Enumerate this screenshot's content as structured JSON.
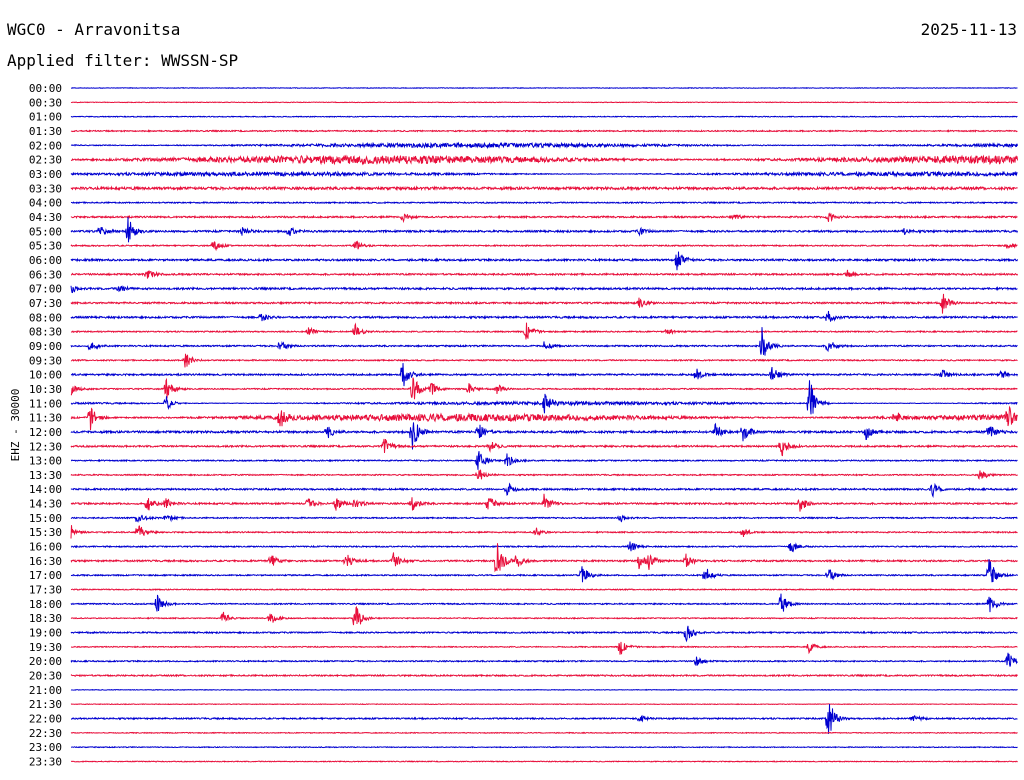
{
  "header": {
    "station": "WGC0 - Arravonitsa",
    "date": "2025-11-13",
    "filter": "Applied filter: WWSSN-SP"
  },
  "chart_data": {
    "type": "line",
    "title": "WGC0 - Arravonitsa",
    "ylabel": "EHZ - 30000",
    "xlabel": "",
    "line_colors": [
      "#0000d0",
      "#e8103c"
    ],
    "row_labels": [
      "00:00",
      "00:30",
      "01:00",
      "01:30",
      "02:00",
      "02:30",
      "03:00",
      "03:30",
      "04:00",
      "04:30",
      "05:00",
      "05:30",
      "06:00",
      "06:30",
      "07:00",
      "07:30",
      "08:00",
      "08:30",
      "09:00",
      "09:30",
      "10:00",
      "10:30",
      "11:00",
      "11:30",
      "12:00",
      "12:30",
      "13:00",
      "13:30",
      "14:00",
      "14:30",
      "15:00",
      "15:30",
      "16:00",
      "16:30",
      "17:00",
      "17:30",
      "18:00",
      "18:30",
      "19:00",
      "19:30",
      "20:00",
      "20:30",
      "21:00",
      "21:30",
      "22:00",
      "22:30",
      "23:00",
      "23:30"
    ],
    "noise": [
      0.3,
      0.3,
      0.4,
      0.6,
      1.8,
      3.5,
      1.6,
      1.2,
      0.6,
      0.8,
      0.9,
      0.6,
      0.9,
      0.8,
      0.9,
      0.8,
      0.9,
      0.6,
      0.7,
      0.6,
      0.8,
      0.6,
      1.4,
      3.0,
      1.0,
      0.8,
      0.6,
      0.6,
      0.8,
      0.8,
      0.6,
      0.6,
      0.6,
      0.8,
      0.6,
      0.5,
      0.6,
      0.5,
      0.7,
      0.5,
      0.6,
      0.7,
      0.3,
      0.3,
      0.7,
      0.4,
      0.4,
      0.4
    ],
    "events": [
      {
        "row": 9,
        "t": 0.35,
        "amp": 5
      },
      {
        "row": 9,
        "t": 0.7,
        "amp": 3
      },
      {
        "row": 9,
        "t": 0.8,
        "amp": 5
      },
      {
        "row": 10,
        "t": 0.03,
        "amp": 6
      },
      {
        "row": 10,
        "t": 0.06,
        "amp": 14
      },
      {
        "row": 10,
        "t": 0.18,
        "amp": 5
      },
      {
        "row": 10,
        "t": 0.23,
        "amp": 5
      },
      {
        "row": 10,
        "t": 0.6,
        "amp": 4
      },
      {
        "row": 10,
        "t": 0.88,
        "amp": 3
      },
      {
        "row": 11,
        "t": 0.15,
        "amp": 7
      },
      {
        "row": 11,
        "t": 0.3,
        "amp": 6
      },
      {
        "row": 11,
        "t": 0.99,
        "amp": 3
      },
      {
        "row": 12,
        "t": 0.64,
        "amp": 12
      },
      {
        "row": 13,
        "t": 0.08,
        "amp": 6
      },
      {
        "row": 13,
        "t": 0.82,
        "amp": 4
      },
      {
        "row": 14,
        "t": 0.0,
        "amp": 4
      },
      {
        "row": 14,
        "t": 0.05,
        "amp": 4
      },
      {
        "row": 15,
        "t": 0.6,
        "amp": 7
      },
      {
        "row": 15,
        "t": 0.92,
        "amp": 12
      },
      {
        "row": 16,
        "t": 0.2,
        "amp": 5
      },
      {
        "row": 16,
        "t": 0.8,
        "amp": 7
      },
      {
        "row": 17,
        "t": 0.25,
        "amp": 6
      },
      {
        "row": 17,
        "t": 0.3,
        "amp": 8
      },
      {
        "row": 17,
        "t": 0.48,
        "amp": 12
      },
      {
        "row": 17,
        "t": 0.63,
        "amp": 4
      },
      {
        "row": 18,
        "t": 0.02,
        "amp": 6
      },
      {
        "row": 18,
        "t": 0.22,
        "amp": 7
      },
      {
        "row": 18,
        "t": 0.5,
        "amp": 5
      },
      {
        "row": 18,
        "t": 0.73,
        "amp": 22
      },
      {
        "row": 18,
        "t": 0.8,
        "amp": 9
      },
      {
        "row": 19,
        "t": 0.12,
        "amp": 10
      },
      {
        "row": 20,
        "t": 0.35,
        "amp": 16
      },
      {
        "row": 20,
        "t": 0.66,
        "amp": 8
      },
      {
        "row": 20,
        "t": 0.74,
        "amp": 10
      },
      {
        "row": 20,
        "t": 0.92,
        "amp": 6
      },
      {
        "row": 20,
        "t": 0.98,
        "amp": 6
      },
      {
        "row": 21,
        "t": 0.0,
        "amp": 6
      },
      {
        "row": 21,
        "t": 0.1,
        "amp": 12
      },
      {
        "row": 21,
        "t": 0.36,
        "amp": 20
      },
      {
        "row": 21,
        "t": 0.38,
        "amp": 8
      },
      {
        "row": 21,
        "t": 0.42,
        "amp": 6
      },
      {
        "row": 21,
        "t": 0.45,
        "amp": 5
      },
      {
        "row": 22,
        "t": 0.1,
        "amp": 8
      },
      {
        "row": 22,
        "t": 0.5,
        "amp": 10
      },
      {
        "row": 22,
        "t": 0.78,
        "amp": 28
      },
      {
        "row": 23,
        "t": 0.02,
        "amp": 12
      },
      {
        "row": 23,
        "t": 0.22,
        "amp": 12
      },
      {
        "row": 23,
        "t": 0.87,
        "amp": 9
      },
      {
        "row": 23,
        "t": 0.99,
        "amp": 12
      },
      {
        "row": 24,
        "t": 0.27,
        "amp": 8
      },
      {
        "row": 24,
        "t": 0.36,
        "amp": 22
      },
      {
        "row": 24,
        "t": 0.43,
        "amp": 10
      },
      {
        "row": 24,
        "t": 0.68,
        "amp": 10
      },
      {
        "row": 24,
        "t": 0.71,
        "amp": 10
      },
      {
        "row": 24,
        "t": 0.84,
        "amp": 8
      },
      {
        "row": 24,
        "t": 0.97,
        "amp": 8
      },
      {
        "row": 25,
        "t": 0.33,
        "amp": 10
      },
      {
        "row": 25,
        "t": 0.44,
        "amp": 9
      },
      {
        "row": 25,
        "t": 0.75,
        "amp": 14
      },
      {
        "row": 26,
        "t": 0.43,
        "amp": 12
      },
      {
        "row": 26,
        "t": 0.46,
        "amp": 8
      },
      {
        "row": 27,
        "t": 0.43,
        "amp": 8
      },
      {
        "row": 27,
        "t": 0.96,
        "amp": 8
      },
      {
        "row": 28,
        "t": 0.46,
        "amp": 8
      },
      {
        "row": 28,
        "t": 0.91,
        "amp": 8
      },
      {
        "row": 29,
        "t": 0.08,
        "amp": 10
      },
      {
        "row": 29,
        "t": 0.1,
        "amp": 6
      },
      {
        "row": 29,
        "t": 0.25,
        "amp": 6
      },
      {
        "row": 29,
        "t": 0.28,
        "amp": 8
      },
      {
        "row": 29,
        "t": 0.3,
        "amp": 6
      },
      {
        "row": 29,
        "t": 0.36,
        "amp": 8
      },
      {
        "row": 29,
        "t": 0.44,
        "amp": 9
      },
      {
        "row": 29,
        "t": 0.5,
        "amp": 10
      },
      {
        "row": 29,
        "t": 0.77,
        "amp": 10
      },
      {
        "row": 30,
        "t": 0.07,
        "amp": 9
      },
      {
        "row": 30,
        "t": 0.1,
        "amp": 6
      },
      {
        "row": 30,
        "t": 0.58,
        "amp": 4
      },
      {
        "row": 31,
        "t": 0.0,
        "amp": 7
      },
      {
        "row": 31,
        "t": 0.07,
        "amp": 12
      },
      {
        "row": 31,
        "t": 0.49,
        "amp": 6
      },
      {
        "row": 31,
        "t": 0.71,
        "amp": 5
      },
      {
        "row": 32,
        "t": 0.59,
        "amp": 6
      },
      {
        "row": 32,
        "t": 0.76,
        "amp": 8
      },
      {
        "row": 33,
        "t": 0.21,
        "amp": 9
      },
      {
        "row": 33,
        "t": 0.29,
        "amp": 9
      },
      {
        "row": 33,
        "t": 0.34,
        "amp": 9
      },
      {
        "row": 33,
        "t": 0.45,
        "amp": 26
      },
      {
        "row": 33,
        "t": 0.47,
        "amp": 10
      },
      {
        "row": 33,
        "t": 0.6,
        "amp": 8
      },
      {
        "row": 33,
        "t": 0.61,
        "amp": 10
      },
      {
        "row": 33,
        "t": 0.65,
        "amp": 8
      },
      {
        "row": 34,
        "t": 0.54,
        "amp": 10
      },
      {
        "row": 34,
        "t": 0.67,
        "amp": 9
      },
      {
        "row": 34,
        "t": 0.8,
        "amp": 10
      },
      {
        "row": 34,
        "t": 0.97,
        "amp": 18
      },
      {
        "row": 36,
        "t": 0.09,
        "amp": 12
      },
      {
        "row": 36,
        "t": 0.75,
        "amp": 14
      },
      {
        "row": 36,
        "t": 0.97,
        "amp": 12
      },
      {
        "row": 37,
        "t": 0.16,
        "amp": 7
      },
      {
        "row": 37,
        "t": 0.21,
        "amp": 8
      },
      {
        "row": 37,
        "t": 0.3,
        "amp": 16
      },
      {
        "row": 38,
        "t": 0.65,
        "amp": 10
      },
      {
        "row": 39,
        "t": 0.58,
        "amp": 9
      },
      {
        "row": 39,
        "t": 0.78,
        "amp": 6
      },
      {
        "row": 40,
        "t": 0.66,
        "amp": 8
      },
      {
        "row": 40,
        "t": 0.99,
        "amp": 11
      },
      {
        "row": 44,
        "t": 0.8,
        "amp": 22
      },
      {
        "row": 44,
        "t": 0.6,
        "amp": 4
      },
      {
        "row": 44,
        "t": 0.89,
        "amp": 4
      }
    ]
  }
}
